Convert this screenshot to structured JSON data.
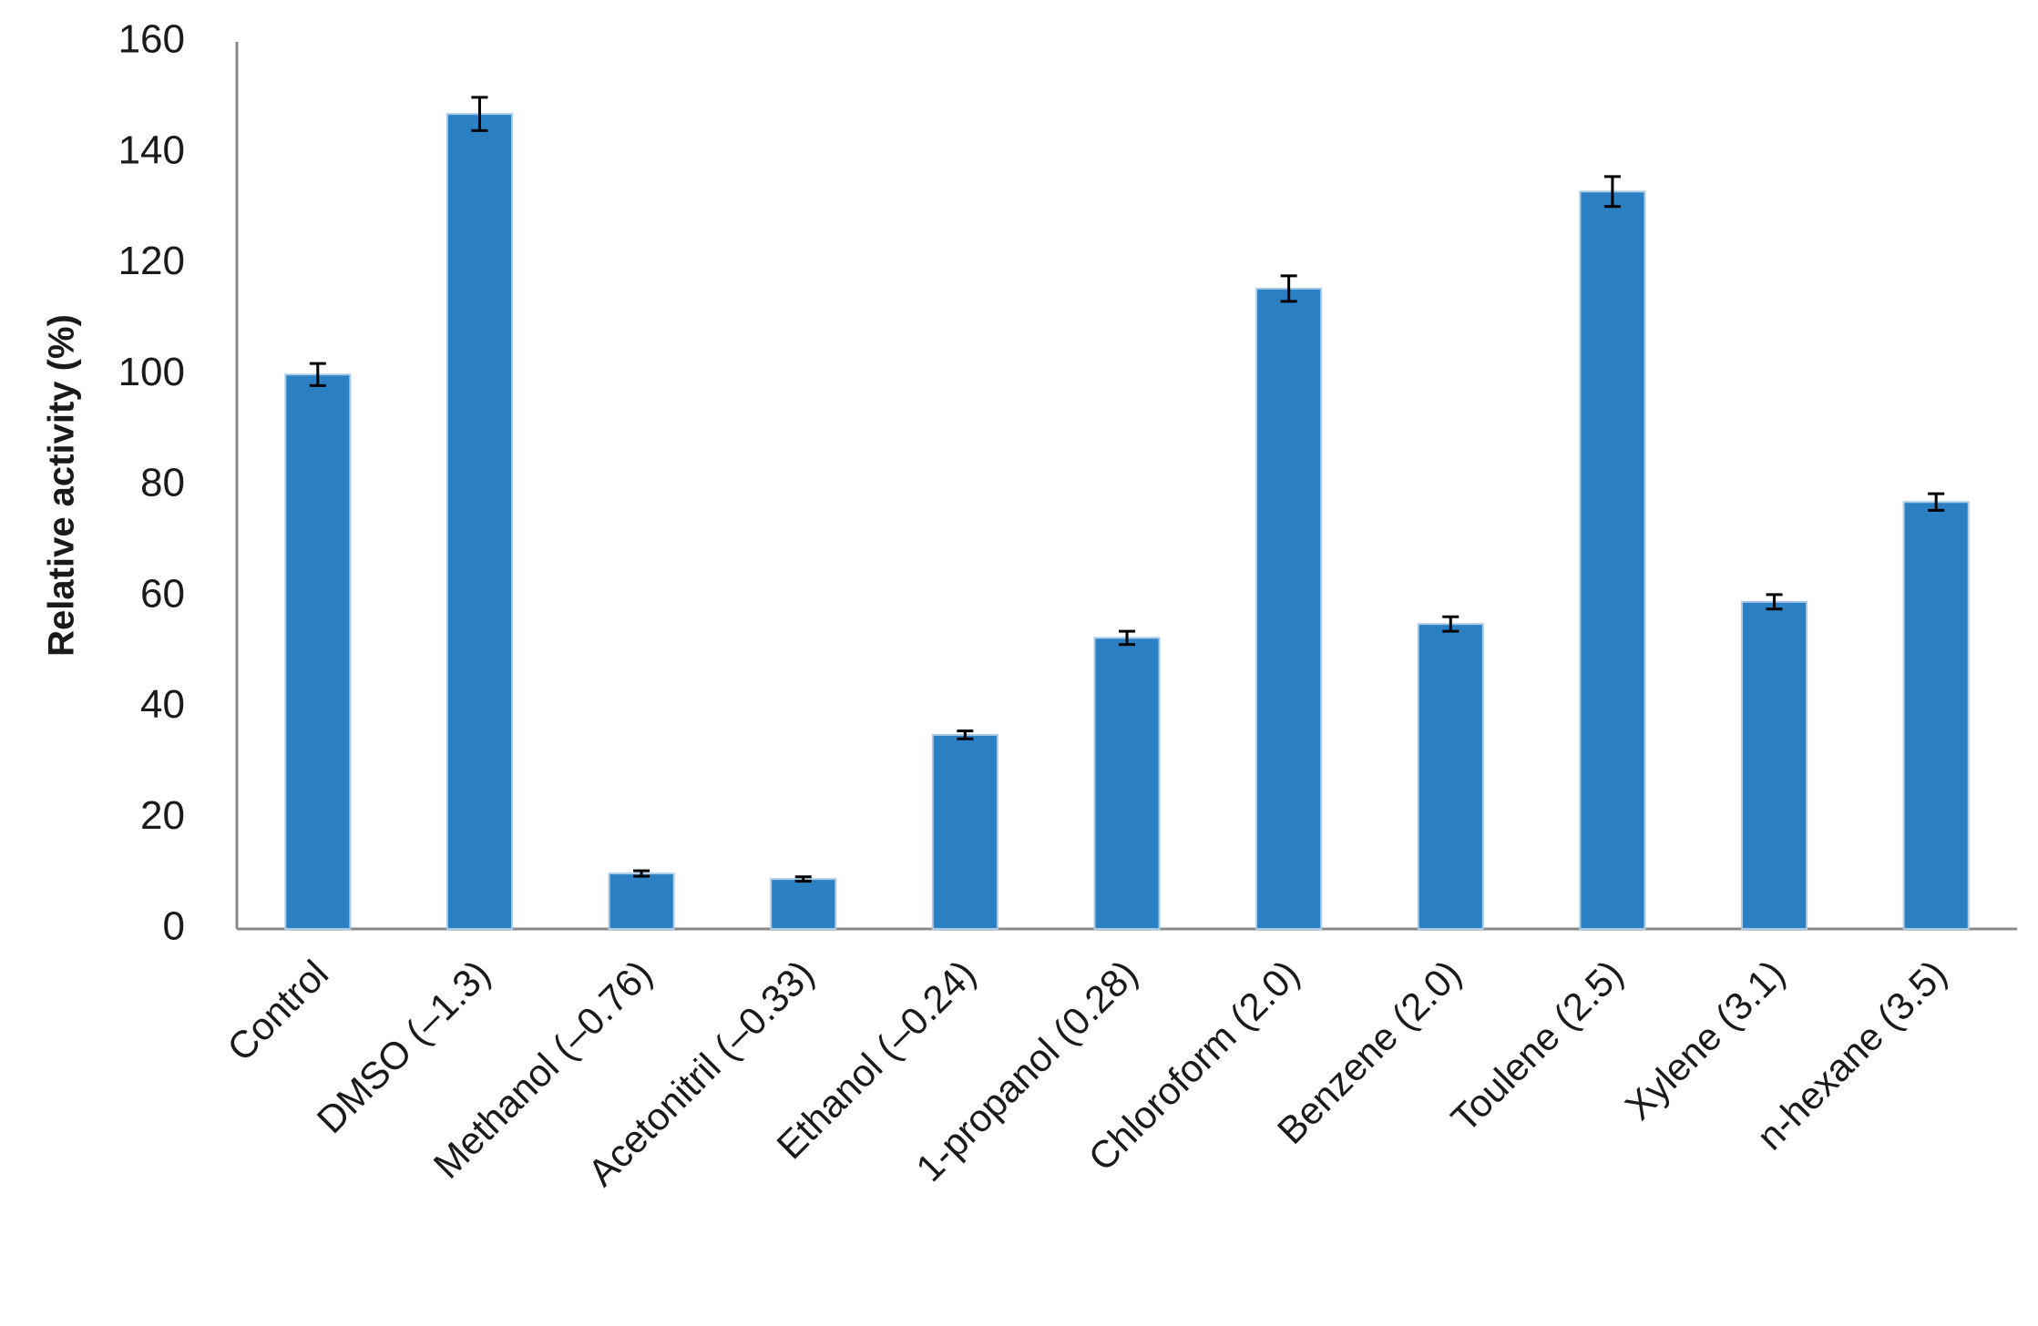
{
  "chart_data": {
    "type": "bar",
    "y_label": "Relative activity (%)",
    "categories": [
      "Control",
      "DMSO (–1.3)",
      "Methanol (–0.76)",
      "Acetonitril (–0.33)",
      "Ethanol (–0.24)",
      "1-propanol (0.28)",
      "Chloroform (2.0)",
      "Benzene (2.0)",
      "Toulene (2.5)",
      "Xylene (3.1)",
      "n-hexane (3.5)"
    ],
    "values": [
      100,
      147,
      10,
      9,
      35,
      52.5,
      115.5,
      55,
      133,
      59,
      77
    ],
    "errors": [
      2,
      3,
      0.5,
      0.4,
      0.7,
      1.2,
      2.3,
      1.3,
      2.7,
      1.3,
      1.5
    ],
    "color": "#2a80c2",
    "ylim": [
      0,
      160
    ],
    "yticks": [
      0,
      20,
      40,
      60,
      80,
      100,
      120,
      140,
      160
    ],
    "grid": false
  }
}
